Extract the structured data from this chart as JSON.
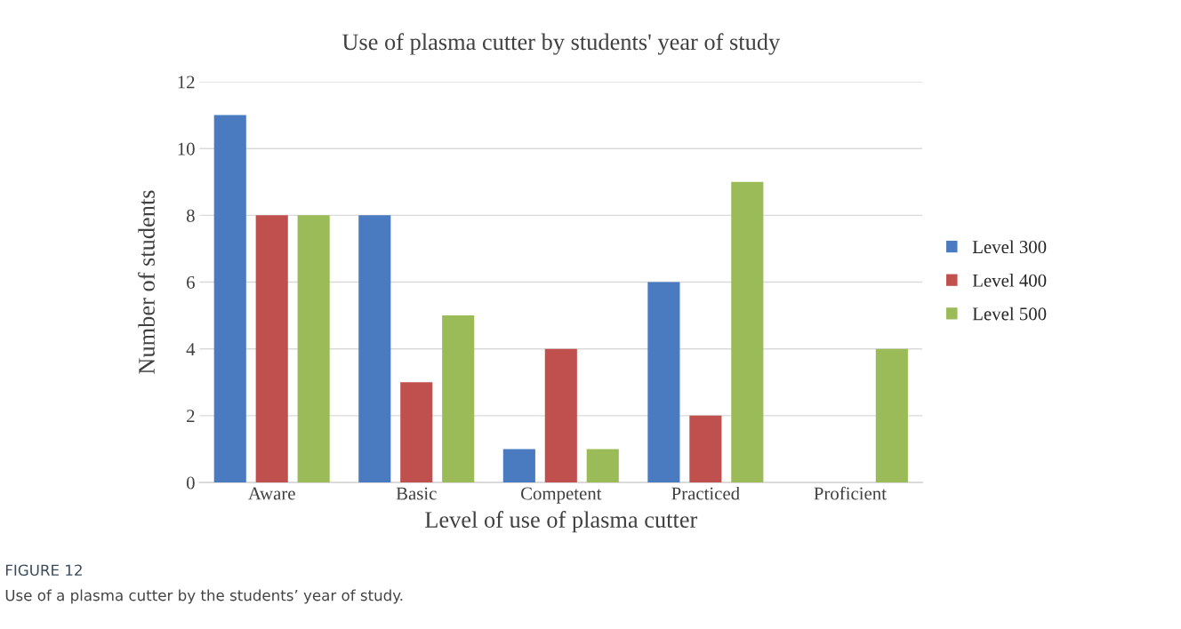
{
  "chart_data": {
    "type": "bar",
    "title": "Use of plasma cutter by students' year of study",
    "xlabel": "Level of use of plasma cutter",
    "ylabel": "Number of students",
    "categories": [
      "Aware",
      "Basic",
      "Competent",
      "Practiced",
      "Proficient"
    ],
    "series": [
      {
        "name": "Level 300",
        "color": "#4a7bc0",
        "values": [
          11,
          8,
          1,
          6,
          0
        ]
      },
      {
        "name": "Level 400",
        "color": "#c0504d",
        "values": [
          8,
          3,
          4,
          2,
          0
        ]
      },
      {
        "name": "Level 500",
        "color": "#9bbb59",
        "values": [
          8,
          5,
          1,
          9,
          4
        ]
      }
    ],
    "ylim": [
      0,
      12
    ],
    "yticks": [
      0,
      2,
      4,
      6,
      8,
      10,
      12
    ],
    "grid": "y",
    "legend": "right",
    "annotations": [
      "FIGURE 12",
      "Use of a plasma cutter by the students’ year of study."
    ]
  }
}
